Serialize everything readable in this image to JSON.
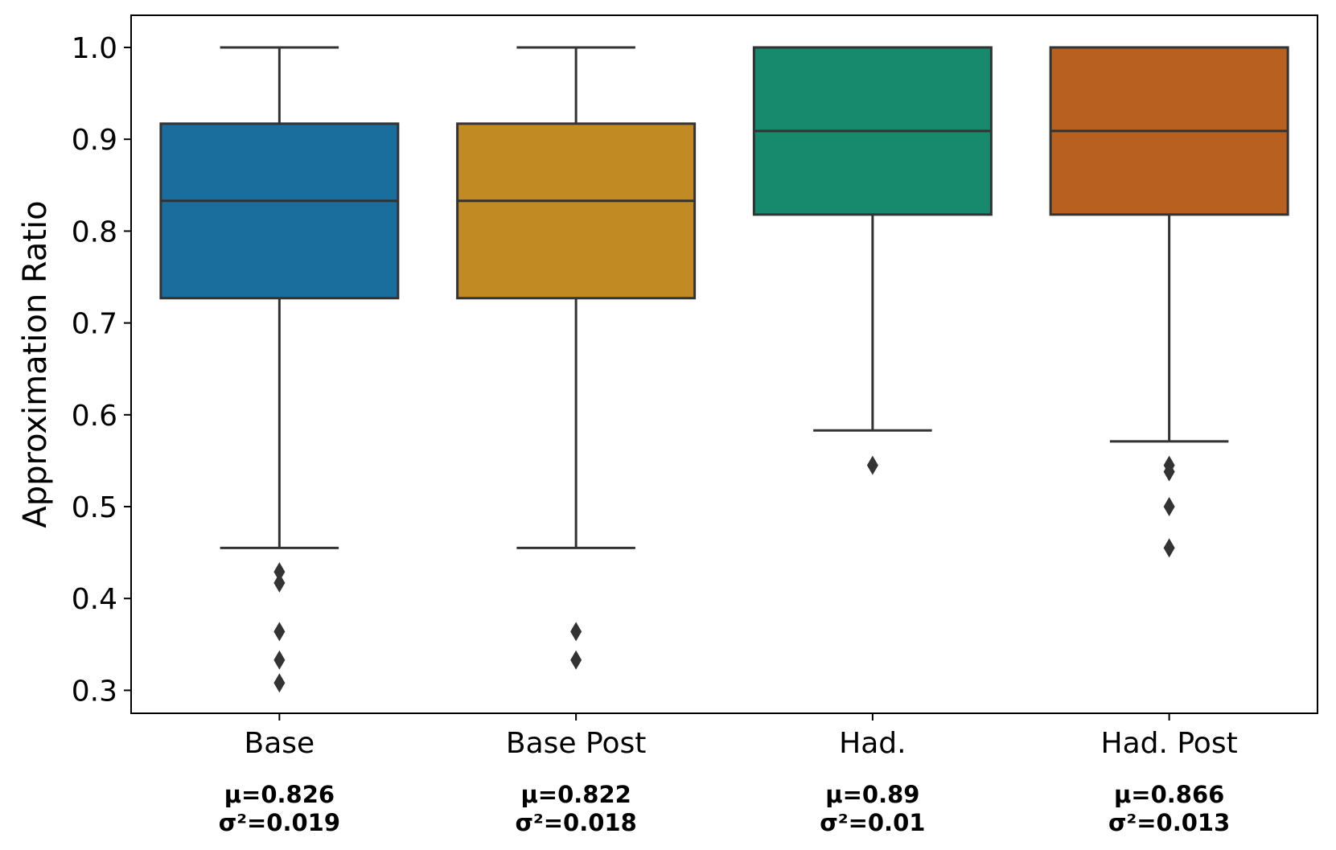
{
  "chart_data": {
    "type": "box",
    "title": "",
    "xlabel": "",
    "ylabel": "Approximation Ratio",
    "ylim": [
      0.275,
      1.035
    ],
    "yticks": [
      {
        "value": 0.3,
        "label": "0.3"
      },
      {
        "value": 0.4,
        "label": "0.4"
      },
      {
        "value": 0.5,
        "label": "0.5"
      },
      {
        "value": 0.6,
        "label": "0.6"
      },
      {
        "value": 0.7,
        "label": "0.7"
      },
      {
        "value": 0.8,
        "label": "0.8"
      },
      {
        "value": 0.9,
        "label": "0.9"
      },
      {
        "value": 1.0,
        "label": "1.0"
      }
    ],
    "categories": [
      "Base",
      "Base Post",
      "Had.",
      "Had. Post"
    ],
    "boxes": [
      {
        "name": "Base",
        "color": "#1a6e9e",
        "whisker_low": 0.455,
        "q1": 0.727,
        "median": 0.833,
        "q3": 0.917,
        "whisker_high": 1.0,
        "outliers": [
          0.429,
          0.417,
          0.364,
          0.333,
          0.308
        ],
        "mean_label": "μ=0.826",
        "var_label": "σ²=0.019"
      },
      {
        "name": "Base Post",
        "color": "#c28a22",
        "whisker_low": 0.455,
        "q1": 0.727,
        "median": 0.833,
        "q3": 0.917,
        "whisker_high": 1.0,
        "outliers": [
          0.364,
          0.333
        ],
        "mean_label": "μ=0.822",
        "var_label": "σ²=0.018"
      },
      {
        "name": "Had.",
        "color": "#178a6e",
        "whisker_low": 0.583,
        "q1": 0.818,
        "median": 0.909,
        "q3": 1.0,
        "whisker_high": 1.0,
        "outliers": [
          0.545
        ],
        "mean_label": "μ=0.89",
        "var_label": "σ²=0.01"
      },
      {
        "name": "Had. Post",
        "color": "#b8601f",
        "whisker_low": 0.571,
        "q1": 0.818,
        "median": 0.909,
        "q3": 1.0,
        "whisker_high": 1.0,
        "outliers": [
          0.545,
          0.538,
          0.5,
          0.455
        ],
        "mean_label": "μ=0.866",
        "var_label": "σ²=0.013"
      }
    ],
    "line_color": "#333333",
    "grid": false,
    "legend": "none"
  }
}
